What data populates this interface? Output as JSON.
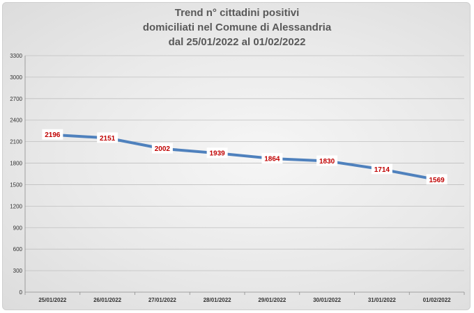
{
  "chart_data": {
    "type": "line",
    "title": [
      "Trend n° cittadini positivi",
      "domiciliati nel Comune di Alessandria",
      "dal 25/01/2022 al 01/02/2022"
    ],
    "categories": [
      "25/01/2022",
      "26/01/2022",
      "27/01/2022",
      "28/01/2022",
      "29/01/2022",
      "30/01/2022",
      "31/01/2022",
      "01/02/2022"
    ],
    "values": [
      2196,
      2151,
      2002,
      1939,
      1864,
      1830,
      1714,
      1569
    ],
    "y_ticks": [
      "0",
      "300",
      "600",
      "900",
      "1200",
      "1500",
      "1800",
      "2100",
      "2400",
      "2700",
      "3000",
      "3300"
    ],
    "ylim": [
      0,
      3300
    ],
    "grid": true,
    "legend": "none",
    "colors": {
      "line": "#4f81bd",
      "label": "#c00000",
      "grid": "#bfbfbf",
      "title": "#595959"
    }
  }
}
